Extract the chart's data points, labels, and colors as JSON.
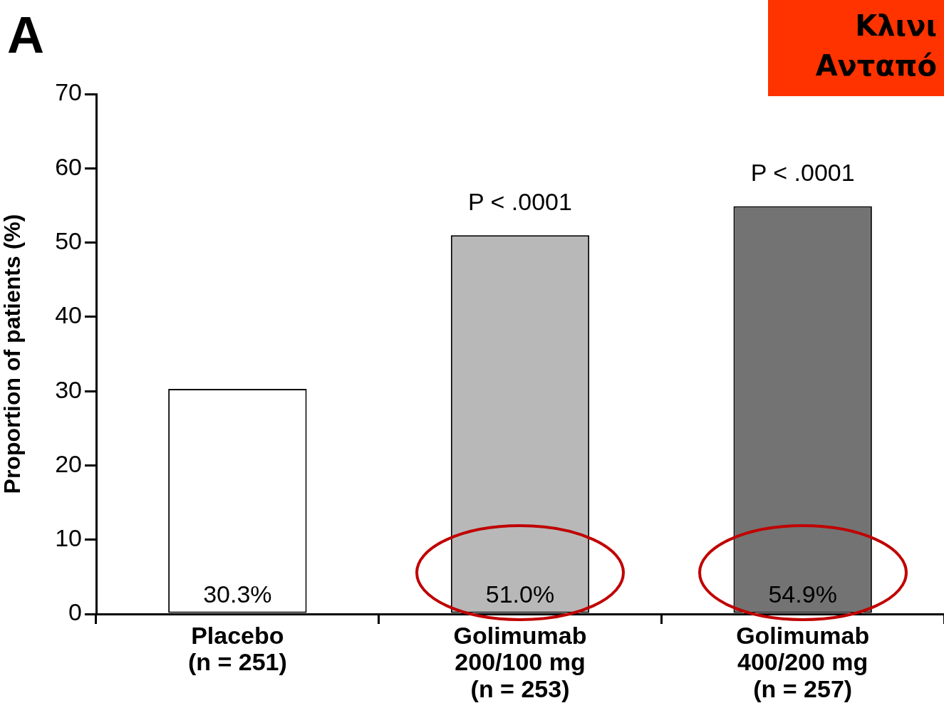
{
  "chart_data": {
    "type": "bar",
    "title": "Κλινι",
    "subtitle": "Ανταπό",
    "ylabel": "Proportion of patients (%)",
    "categories": [
      "Placebo\n(n = 251)",
      "Golimumab\n200/100 mg\n(n = 253)",
      "Golimumab\n400/200 mg\n(n = 257)"
    ],
    "values": [
      30.3,
      51.0,
      54.9
    ],
    "colors": [
      "#ffffff",
      "#b8b8b8",
      "#737373"
    ],
    "value_labels": [
      "30.3%",
      "51.0%",
      "54.9%"
    ],
    "ylim": [
      0,
      70
    ],
    "yticks": [
      0,
      10,
      20,
      30,
      40,
      50,
      60,
      70
    ],
    "grid": false,
    "legend": false,
    "annotations": [
      "A",
      "P < .0001",
      "P < .0001"
    ]
  }
}
